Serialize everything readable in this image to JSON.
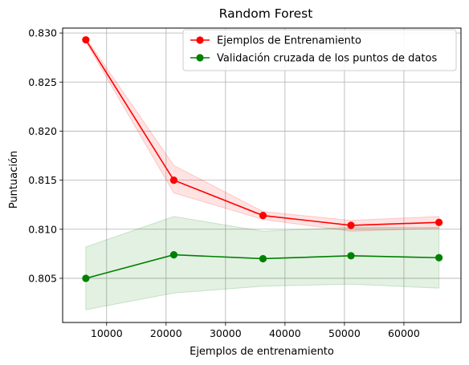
{
  "chart_data": {
    "type": "line",
    "title": "Random Forest",
    "xlabel": "Ejemplos de entrenamiento",
    "ylabel": "Puntuación",
    "xlim": [
      2600,
      69600
    ],
    "ylim": [
      0.8005,
      0.8305
    ],
    "x_ticks": [
      10000,
      20000,
      30000,
      40000,
      50000,
      60000
    ],
    "x_tick_labels": [
      "10000",
      "20000",
      "30000",
      "40000",
      "50000",
      "60000"
    ],
    "y_ticks": [
      0.805,
      0.81,
      0.815,
      0.82,
      0.825,
      0.83
    ],
    "y_tick_labels": [
      "0.805",
      "0.810",
      "0.815",
      "0.820",
      "0.825",
      "0.830"
    ],
    "grid": true,
    "legend_position": "top-right",
    "x": [
      6500,
      21300,
      36300,
      51100,
      65900
    ],
    "series": [
      {
        "name": "Ejemplos de Entrenamiento",
        "color": "#ff0000",
        "band_color": "#ff0000",
        "values": [
          0.8293,
          0.815,
          0.8114,
          0.8104,
          0.8107
        ],
        "band_upper": [
          0.8295,
          0.8165,
          0.8118,
          0.8109,
          0.8113
        ],
        "band_lower": [
          0.8291,
          0.8137,
          0.811,
          0.8098,
          0.8101
        ]
      },
      {
        "name": "Validación cruzada de los puntos de datos",
        "color": "#008000",
        "band_color": "#008000",
        "values": [
          0.805,
          0.8074,
          0.807,
          0.8073,
          0.8071
        ],
        "band_upper": [
          0.8082,
          0.8113,
          0.8098,
          0.8102,
          0.8102
        ],
        "band_lower": [
          0.8018,
          0.8035,
          0.8042,
          0.8044,
          0.804
        ]
      }
    ]
  }
}
